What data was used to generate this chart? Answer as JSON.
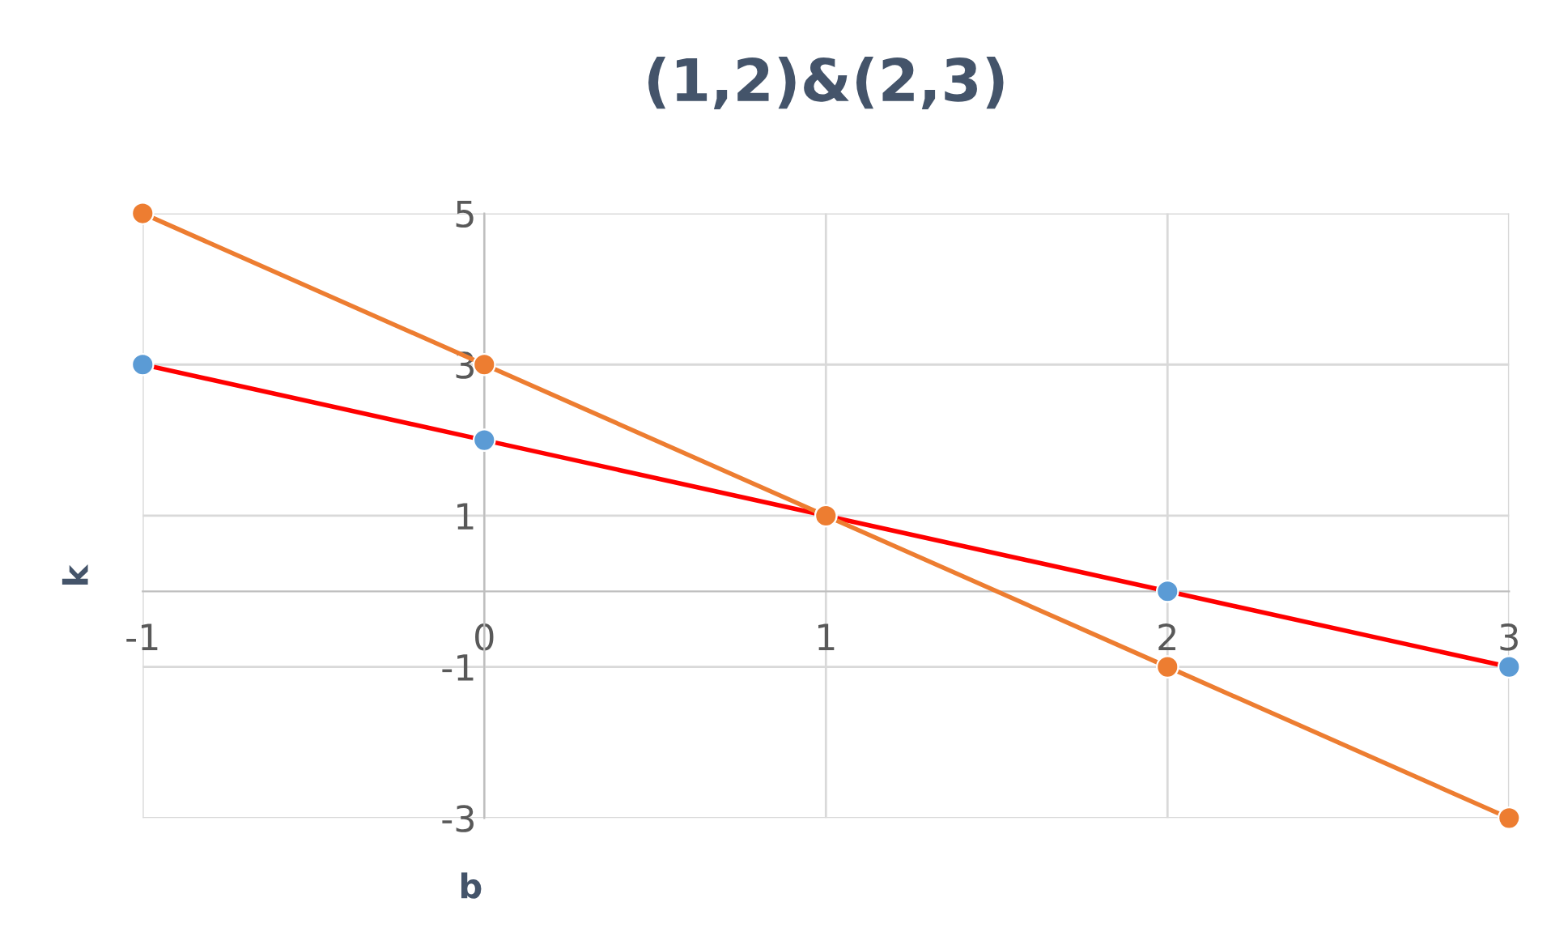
{
  "chart_data": {
    "type": "line",
    "title": "(1,2)&(2,3)",
    "xlabel": "b",
    "ylabel": "k",
    "x": [
      -1,
      0,
      1,
      2,
      3
    ],
    "series": [
      {
        "color": "#ff0000",
        "colors": [
          "#5b9bd5",
          "#5b9bd5",
          "#5b9bd5",
          "#5b9bd5",
          "#5b9bd5"
        ],
        "values": [
          3,
          2,
          1,
          0,
          -1
        ]
      },
      {
        "color": "#ed7d31",
        "colors": [
          "#ed7d31",
          "#ed7d31",
          "#ed7d31",
          "#ed7d31",
          "#ed7d31"
        ],
        "values": [
          5,
          3,
          1,
          -1,
          -3
        ]
      }
    ],
    "xlim": [
      -1,
      3
    ],
    "ylim": [
      -3,
      5
    ],
    "xticks": [
      -1,
      0,
      1,
      2,
      3
    ],
    "yticks": [
      -3,
      -1,
      1,
      3,
      5
    ],
    "grid": true,
    "marker": "circle",
    "line_style": "solid"
  }
}
